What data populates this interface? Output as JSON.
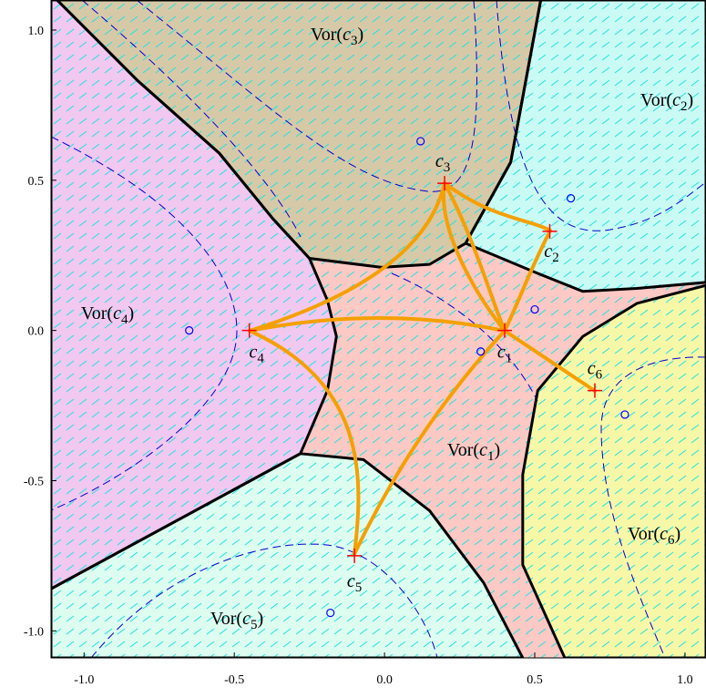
{
  "chart_data": {
    "type": "voronoi",
    "xlim": [
      -1.11,
      1.07
    ],
    "ylim": [
      -1.09,
      1.1
    ],
    "xticks": [
      {
        "value": -1,
        "label": "-1.0"
      },
      -0.5,
      {
        "value": 0,
        "label": "0.0"
      },
      0.5,
      {
        "value": 1,
        "label": "1.0"
      }
    ],
    "yticks": [
      {
        "value": -1,
        "label": "-1.0"
      },
      -0.5,
      {
        "value": 0,
        "label": "0.0"
      },
      0.5,
      {
        "value": 1,
        "label": "1.0"
      }
    ],
    "background_color": "#fdc9c4",
    "regions": [
      {
        "label": "Vor(c1)",
        "color": "#fdc9c4",
        "x": [],
        "y": []
      },
      {
        "label": "Vor(c2)",
        "color": "#c9fbf4",
        "x": [
          0.52,
          1.07,
          1.07,
          0.84,
          0.66,
          0.51,
          0.27,
          0.42
        ],
        "y": [
          1.1,
          1.1,
          0.16,
          0.14,
          0.13,
          0.19,
          0.29,
          0.56
        ]
      },
      {
        "label": "Vor(c3)",
        "color": "#d6c9a8",
        "x": [
          -1.09,
          0.52,
          0.42,
          0.27,
          0.15,
          -0.01,
          -0.25,
          -0.37,
          -0.55,
          -0.82
        ],
        "y": [
          1.1,
          1.1,
          0.56,
          0.29,
          0.22,
          0.21,
          0.24,
          0.37,
          0.59,
          0.83
        ]
      },
      {
        "label": "Vor(c4)",
        "color": "#f0c8f0",
        "x": [
          -1.11,
          -1.09,
          -0.82,
          -0.55,
          -0.37,
          -0.25,
          -0.19,
          -0.16,
          -0.19,
          -0.28,
          -1.11
        ],
        "y": [
          1.1,
          1.1,
          0.83,
          0.59,
          0.37,
          0.24,
          0.1,
          -0.02,
          -0.2,
          -0.41,
          -0.86
        ]
      },
      {
        "label": "Vor(c5)",
        "color": "#dcfdf0",
        "x": [
          -1.11,
          -0.28,
          -0.07,
          0.15,
          0.33,
          0.46,
          -1.11
        ],
        "y": [
          -0.86,
          -0.41,
          -0.43,
          -0.6,
          -0.84,
          -1.09,
          -1.09
        ]
      },
      {
        "label": "Vor(c6)",
        "color": "#f6f8a8",
        "x": [
          1.07,
          0.84,
          0.66,
          0.51,
          0.46,
          0.46,
          0.6,
          1.07
        ],
        "y": [
          0.15,
          0.09,
          -0.02,
          -0.2,
          -0.48,
          -0.78,
          -1.09,
          -1.09
        ]
      }
    ],
    "centers": {
      "labels": [
        "c1",
        "c2",
        "c3",
        "c4",
        "c5",
        "c6"
      ],
      "x": [
        0.4,
        0.55,
        0.2,
        -0.45,
        -0.1,
        0.7
      ],
      "y": [
        0,
        0.33,
        0.49,
        0,
        -0.75,
        -0.2
      ],
      "color": "#ff0000"
    },
    "points": {
      "x": [
        0.12,
        0.62,
        0.5,
        0.32,
        -0.65,
        0.8,
        -0.18
      ],
      "y": [
        0.63,
        0.44,
        0.07,
        -0.07,
        0,
        -0.28,
        -0.94
      ],
      "color": "#0000ff"
    }
  }
}
